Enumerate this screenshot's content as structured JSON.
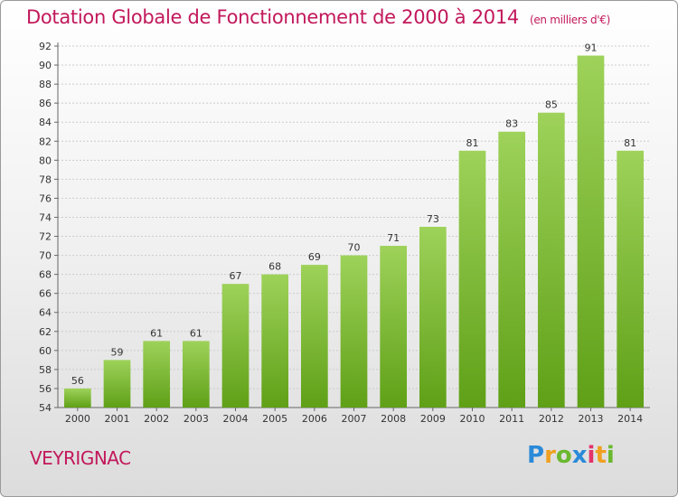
{
  "title": "Dotation Globale de Fonctionnement de 2000 à 2014",
  "subtitle": "(en milliers d'€)",
  "commune": "VEYRIGNAC",
  "logo": {
    "text": "Proxiti",
    "letters": [
      "P",
      "r",
      "o",
      "x",
      "i",
      "t",
      "i"
    ],
    "colors": [
      "#2b8ad8",
      "#f0a020",
      "#6ab82e",
      "#2b8ad8",
      "#e2336a",
      "#f0a020",
      "#6ab82e"
    ]
  },
  "colors": {
    "accent": "#c2185b",
    "bar_top": "#9ed25a",
    "bar_bottom": "#5fa017",
    "grid": "#cccccc"
  },
  "chart_data": {
    "type": "bar",
    "categories": [
      "2000",
      "2001",
      "2002",
      "2003",
      "2004",
      "2005",
      "2006",
      "2007",
      "2008",
      "2009",
      "2010",
      "2011",
      "2012",
      "2013",
      "2014"
    ],
    "values": [
      56,
      59,
      61,
      61,
      67,
      68,
      69,
      70,
      71,
      73,
      81,
      83,
      85,
      91,
      81
    ],
    "ylim": [
      54,
      92
    ],
    "yticks": [
      54,
      56,
      58,
      60,
      62,
      64,
      66,
      68,
      70,
      72,
      74,
      76,
      78,
      80,
      82,
      84,
      86,
      88,
      90,
      92
    ],
    "grid": true,
    "legend": "none",
    "xlabel": "",
    "ylabel": ""
  }
}
